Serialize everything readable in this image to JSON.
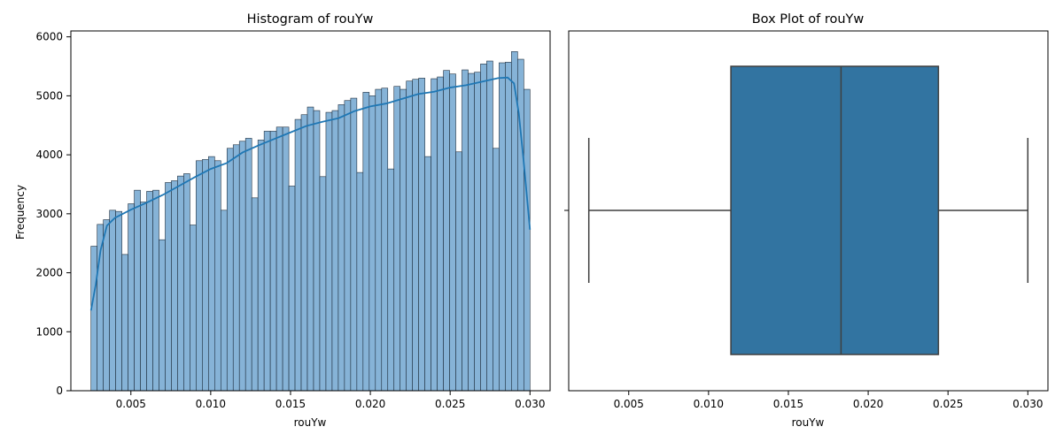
{
  "chart_data": [
    {
      "type": "histogram",
      "title": "Histogram of rouYw",
      "xlabel": "rouYw",
      "ylabel": "Frequency",
      "xlim": [
        0.00124,
        0.03126
      ],
      "ylim": [
        0,
        6100
      ],
      "x_ticks": [
        0.005,
        0.01,
        0.015,
        0.02,
        0.025,
        0.03
      ],
      "x_tick_labels": [
        "0.005",
        "0.010",
        "0.015",
        "0.020",
        "0.025",
        "0.030"
      ],
      "y_ticks": [
        0,
        1000,
        2000,
        3000,
        4000,
        5000,
        6000
      ],
      "y_tick_labels": [
        "0",
        "1000",
        "2000",
        "3000",
        "4000",
        "5000",
        "6000"
      ],
      "bin_range": [
        0.0025,
        0.03
      ],
      "values": [
        2450,
        2820,
        2900,
        3060,
        3040,
        2310,
        3170,
        3400,
        3200,
        3380,
        3400,
        2560,
        3530,
        3560,
        3640,
        3680,
        2810,
        3900,
        3920,
        3970,
        3900,
        3060,
        4110,
        4170,
        4230,
        4280,
        3270,
        4250,
        4400,
        4400,
        4470,
        4470,
        3470,
        4600,
        4680,
        4810,
        4750,
        3630,
        4720,
        4750,
        4850,
        4920,
        4960,
        3700,
        5060,
        5000,
        5110,
        5130,
        3760,
        5160,
        5110,
        5250,
        5280,
        5300,
        3970,
        5290,
        5320,
        5430,
        5370,
        4050,
        5440,
        5380,
        5400,
        5540,
        5590,
        4110,
        5560,
        5570,
        5750,
        5620,
        5110
      ],
      "kde": {
        "x": [
          0.0025,
          0.0028,
          0.0031,
          0.0035,
          0.004,
          0.005,
          0.006,
          0.007,
          0.008,
          0.009,
          0.01,
          0.011,
          0.012,
          0.013,
          0.014,
          0.015,
          0.016,
          0.017,
          0.018,
          0.019,
          0.02,
          0.021,
          0.022,
          0.023,
          0.024,
          0.025,
          0.026,
          0.027,
          0.028,
          0.0286,
          0.029,
          0.0293,
          0.0296,
          0.03
        ],
        "y": [
          1360,
          1800,
          2380,
          2800,
          2930,
          3070,
          3190,
          3320,
          3470,
          3620,
          3760,
          3860,
          4040,
          4160,
          4270,
          4380,
          4490,
          4560,
          4620,
          4740,
          4820,
          4870,
          4950,
          5030,
          5070,
          5140,
          5180,
          5240,
          5300,
          5310,
          5210,
          4700,
          3900,
          2730
        ]
      }
    },
    {
      "type": "box",
      "title": "Box Plot of rouYw",
      "xlabel": "rouYw",
      "xlim": [
        0.00124,
        0.03126
      ],
      "x_ticks": [
        0.005,
        0.01,
        0.015,
        0.02,
        0.025,
        0.03
      ],
      "x_tick_labels": [
        "0.005",
        "0.010",
        "0.015",
        "0.020",
        "0.025",
        "0.030"
      ],
      "whisker_low": 0.0025,
      "q1": 0.0114,
      "median": 0.0183,
      "q3": 0.0244,
      "whisker_high": 0.03
    }
  ],
  "colors": {
    "hist_fill": "#86b3d7",
    "hist_edge": "#1f2f3f",
    "kde_line": "#1f77b4",
    "box_fill": "#3274a1",
    "box_line": "#3f3f3f"
  }
}
